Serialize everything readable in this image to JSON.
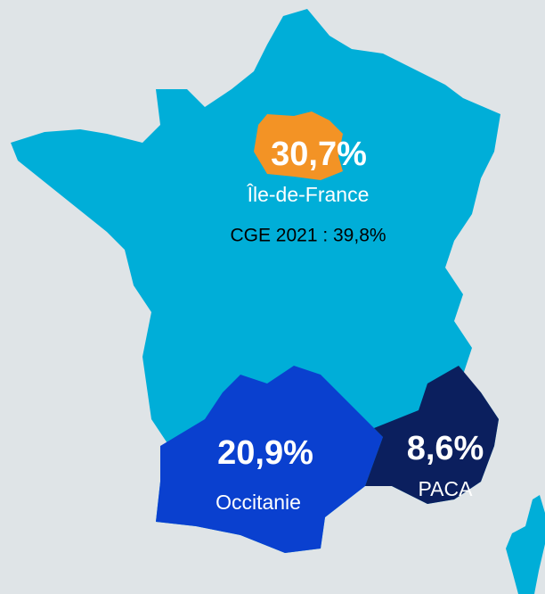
{
  "regions": [
    {
      "value": "30,7%",
      "name": "Île-de-France",
      "note": "CGE 2021 : 39,8%"
    },
    {
      "value": "20,9%",
      "name": "Occitanie"
    },
    {
      "value": "8,6%",
      "name": "PACA"
    }
  ]
}
